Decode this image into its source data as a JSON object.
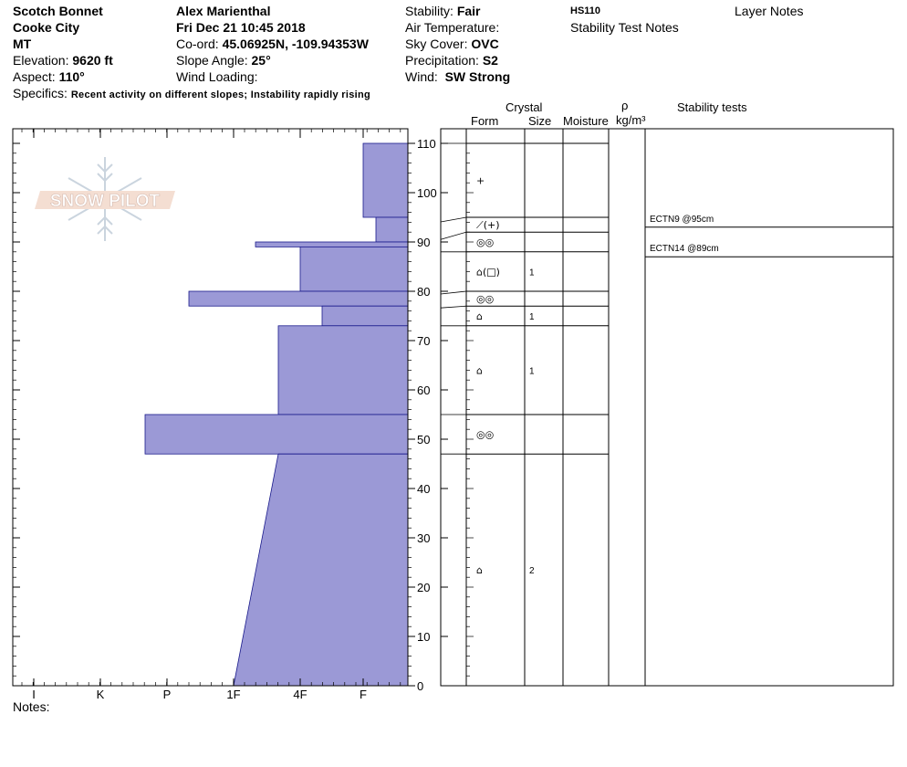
{
  "header": {
    "location": "Scotch Bonnet",
    "range": "Cooke City",
    "state": "MT",
    "elevation_label": "Elevation:",
    "elevation_value": "9620 ft",
    "aspect_label": "Aspect:",
    "aspect_value": "110°",
    "specifics_label": "Specifics:",
    "specifics_value": "Recent activity on different slopes; Instability rapidly rising",
    "observer": "Alex Marienthal",
    "datetime": "Fri Dec 21 10:45 2018",
    "coord_label": "Co-ord:",
    "coord_value": "45.06925N, -109.94353W",
    "slope_label": "Slope Angle:",
    "slope_value": "25°",
    "wind_loading_label": "Wind Loading:",
    "stability_label": "Stability:",
    "stability_value": "Fair",
    "air_temp_label": "Air Temperature:",
    "sky_label": "Sky Cover:",
    "sky_value": "OVC",
    "precip_label": "Precipitation:",
    "precip_value": "S2",
    "wind_label": "Wind:",
    "wind_value": "SW Strong",
    "hs": "HS110",
    "stability_notes": "Stability Test Notes",
    "layer_notes": "Layer Notes"
  },
  "logo_text": "SNOW PILOT",
  "notes_label": "Notes:",
  "columns": {
    "crystal": "Crystal",
    "form": "Form",
    "size": "Size",
    "moisture": "Moisture",
    "rho": "ρ",
    "density_unit": "kg/m³",
    "stability_tests": "Stability tests"
  },
  "colors": {
    "hardness_fill": "#9b99d6",
    "hardness_stroke": "#1a1a8c"
  },
  "chart_data": {
    "type": "bar",
    "orientation": "horizontal",
    "ylabel": "",
    "ylim": [
      0,
      110
    ],
    "y_ticks": [
      0,
      10,
      20,
      30,
      40,
      50,
      60,
      70,
      80,
      90,
      100,
      110
    ],
    "x_tick_labels": [
      "I",
      "K",
      "P",
      "1F",
      "4F",
      "F"
    ],
    "hardness_layers": [
      {
        "top": 110,
        "bottom": 95,
        "hardness": "F"
      },
      {
        "top": 95,
        "bottom": 90,
        "hardness": "F+"
      },
      {
        "top": 90,
        "bottom": 89,
        "hardness": "1F-"
      },
      {
        "top": 89,
        "bottom": 80,
        "hardness": "4F"
      },
      {
        "top": 80,
        "bottom": 77,
        "hardness": "P-"
      },
      {
        "top": 77,
        "bottom": 73,
        "hardness": "4F-"
      },
      {
        "top": 73,
        "bottom": 55,
        "hardness": "4F+"
      },
      {
        "top": 55,
        "bottom": 47,
        "hardness": "P+"
      },
      {
        "top": 47,
        "bottom": 0,
        "hardness_top": "4F+",
        "hardness_bottom": "1F"
      }
    ],
    "layers": [
      {
        "top": 110,
        "bottom": 95,
        "form": "+",
        "size": ""
      },
      {
        "top": 95,
        "bottom": 92,
        "form": "⟋(+)",
        "size": ""
      },
      {
        "top": 92,
        "bottom": 88,
        "form": "◎◎",
        "size": ""
      },
      {
        "top": 88,
        "bottom": 80,
        "form": "⌂(□)",
        "size": "1"
      },
      {
        "top": 80,
        "bottom": 77,
        "form": "◎◎",
        "size": ""
      },
      {
        "top": 77,
        "bottom": 73,
        "form": "⌂",
        "size": "1"
      },
      {
        "top": 73,
        "bottom": 55,
        "form": "⌂",
        "size": "1"
      },
      {
        "top": 55,
        "bottom": 47,
        "form": "◎◎",
        "size": ""
      },
      {
        "top": 47,
        "bottom": 0,
        "form": "⌂",
        "size": "2"
      }
    ],
    "stability_tests": [
      {
        "label": "ECTN9 @95cm",
        "depth": 95
      },
      {
        "label": "ECTN14 @89cm",
        "depth": 89
      }
    ]
  }
}
